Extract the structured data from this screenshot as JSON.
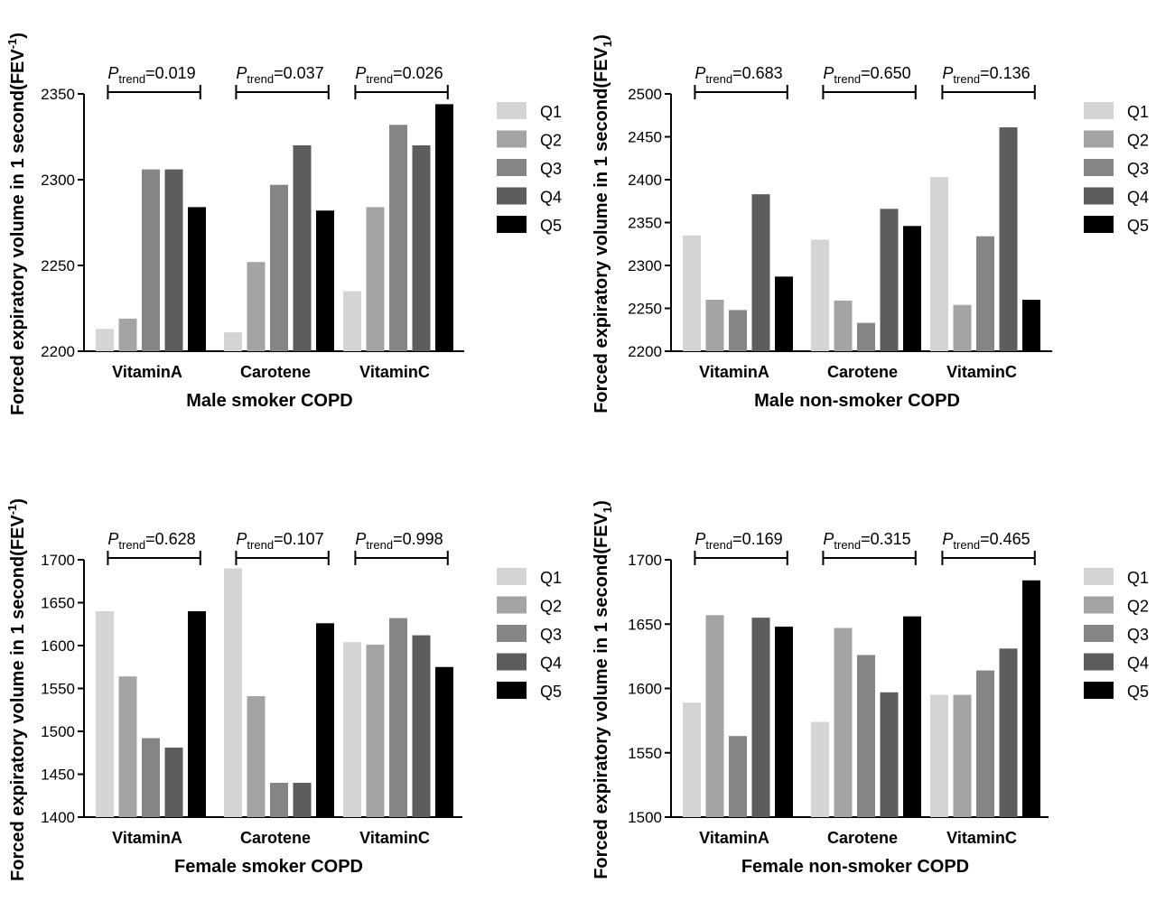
{
  "legend_labels": [
    "Q1",
    "Q2",
    "Q3",
    "Q4",
    "Q5"
  ],
  "colors": [
    "#d4d4d4",
    "#a4a4a6",
    "#858585",
    "#5d5d5d",
    "#000000"
  ],
  "chart_data": [
    {
      "type": "bar",
      "xlabel": "Male smoker COPD",
      "ylabel": "Forced expiratory volume in 1 second(FEV",
      "ylabel_sup": "-1",
      "ylabel_sub": "",
      "ylabel_end": ")",
      "ylim": [
        2200,
        2350
      ],
      "yticks": [
        "2200",
        "2250",
        "2300",
        "2350"
      ],
      "categories": [
        "VitaminA",
        "Carotene",
        "VitaminC"
      ],
      "series": [
        {
          "name": "Q1",
          "values": [
            2213,
            2211,
            2235
          ]
        },
        {
          "name": "Q2",
          "values": [
            2219,
            2252,
            2284
          ]
        },
        {
          "name": "Q3",
          "values": [
            2306,
            2297,
            2332
          ]
        },
        {
          "name": "Q4",
          "values": [
            2306,
            2320,
            2320
          ]
        },
        {
          "name": "Q5",
          "values": [
            2284,
            2282,
            2344
          ]
        }
      ],
      "p_trend": [
        "=0.019",
        "=0.037",
        "=0.026"
      ]
    },
    {
      "type": "bar",
      "xlabel": "Male non-smoker COPD",
      "ylabel": "Forced expiratory volume in 1 second(FEV",
      "ylabel_sup": "",
      "ylabel_sub": "1",
      "ylabel_end": ")",
      "ylim": [
        2200,
        2500
      ],
      "yticks": [
        "2200",
        "2250",
        "2300",
        "2350",
        "2400",
        "2450",
        "2500"
      ],
      "categories": [
        "VitaminA",
        "Carotene",
        "VitaminC"
      ],
      "series": [
        {
          "name": "Q1",
          "values": [
            2335,
            2330,
            2403
          ]
        },
        {
          "name": "Q2",
          "values": [
            2260,
            2259,
            2254
          ]
        },
        {
          "name": "Q3",
          "values": [
            2248,
            2233,
            2334
          ]
        },
        {
          "name": "Q4",
          "values": [
            2383,
            2366,
            2461
          ]
        },
        {
          "name": "Q5",
          "values": [
            2287,
            2346,
            2260
          ]
        }
      ],
      "p_trend": [
        "=0.683",
        "=0.650",
        "=0.136"
      ]
    },
    {
      "type": "bar",
      "xlabel": "Female smoker COPD",
      "ylabel": "Forced expiratory volume in 1 second(FEV",
      "ylabel_sup": "-1",
      "ylabel_sub": "",
      "ylabel_end": ")",
      "ylim": [
        1400,
        1700
      ],
      "yticks": [
        "1400",
        "1450",
        "1500",
        "1550",
        "1600",
        "1650",
        "1700"
      ],
      "categories": [
        "VitaminA",
        "Carotene",
        "VitaminC"
      ],
      "series": [
        {
          "name": "Q1",
          "values": [
            1640,
            1690,
            1604
          ]
        },
        {
          "name": "Q2",
          "values": [
            1564,
            1541,
            1601
          ]
        },
        {
          "name": "Q3",
          "values": [
            1492,
            1440,
            1632
          ]
        },
        {
          "name": "Q4",
          "values": [
            1481,
            1440,
            1612
          ]
        },
        {
          "name": "Q5",
          "values": [
            1640,
            1626,
            1575
          ]
        }
      ],
      "p_trend": [
        "=0.628",
        "=0.107",
        "=0.998"
      ]
    },
    {
      "type": "bar",
      "xlabel": "Female non-smoker COPD",
      "ylabel": "Forced expiratory volume in 1 second(FEV",
      "ylabel_sup": "",
      "ylabel_sub": "1",
      "ylabel_end": ")",
      "ylim": [
        1500,
        1700
      ],
      "yticks": [
        "1500",
        "1550",
        "1600",
        "1650",
        "1700"
      ],
      "categories": [
        "VitaminA",
        "Carotene",
        "VitaminC"
      ],
      "series": [
        {
          "name": "Q1",
          "values": [
            1589,
            1574,
            1595
          ]
        },
        {
          "name": "Q2",
          "values": [
            1657,
            1647,
            1595
          ]
        },
        {
          "name": "Q3",
          "values": [
            1563,
            1626,
            1614
          ]
        },
        {
          "name": "Q4",
          "values": [
            1655,
            1597,
            1631
          ]
        },
        {
          "name": "Q5",
          "values": [
            1648,
            1656,
            1684
          ]
        }
      ],
      "p_trend": [
        "=0.169",
        "=0.315",
        "=0.465"
      ]
    }
  ]
}
